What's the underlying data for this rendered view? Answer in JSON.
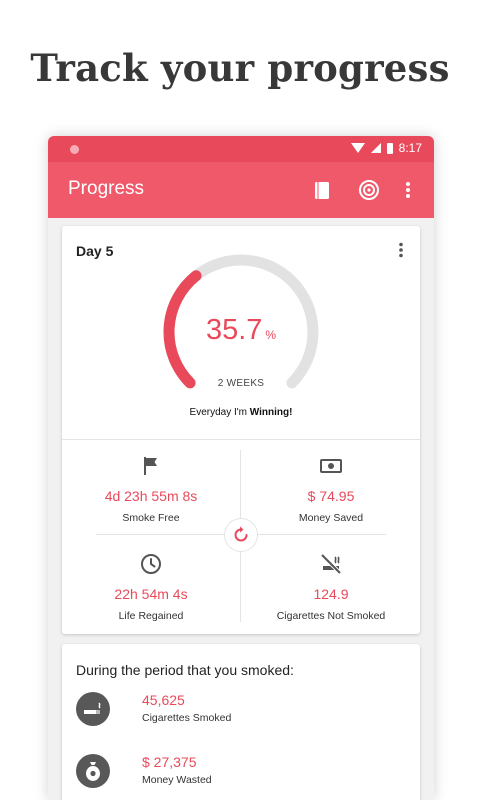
{
  "headline": "Track your progress",
  "status_bar": {
    "time": "8:17"
  },
  "app_bar": {
    "title": "Progress",
    "icons": [
      "journal-icon",
      "target-icon",
      "overflow-menu-icon"
    ]
  },
  "progress_card": {
    "day_label": "Day 5",
    "percent_value": "35.7",
    "percent_unit": "%",
    "progress_fraction": 0.357,
    "period_label": "2 WEEKS",
    "motto_prefix": "Everyday I'm ",
    "motto_emphasis": "Winning!",
    "colors": {
      "accent": "#e94a5b",
      "track": "#e2e2e2"
    },
    "stats": [
      {
        "icon": "flag-icon",
        "value": "4d 23h 55m 8s",
        "label": "Smoke Free"
      },
      {
        "icon": "money-icon",
        "value": "$ 74.95",
        "label": "Money Saved"
      },
      {
        "icon": "clock-icon",
        "value": "22h 54m 4s",
        "label": "Life Regained"
      },
      {
        "icon": "no-smoking-icon",
        "value": "124.9",
        "label": "Cigarettes Not Smoked"
      }
    ]
  },
  "smoked_card": {
    "title": "During the period that you smoked:",
    "rows": [
      {
        "icon": "cigarette-icon",
        "value": "45,625",
        "label": "Cigarettes Smoked"
      },
      {
        "icon": "money-bag-icon",
        "value": "$ 27,375",
        "label": "Money Wasted"
      }
    ]
  }
}
